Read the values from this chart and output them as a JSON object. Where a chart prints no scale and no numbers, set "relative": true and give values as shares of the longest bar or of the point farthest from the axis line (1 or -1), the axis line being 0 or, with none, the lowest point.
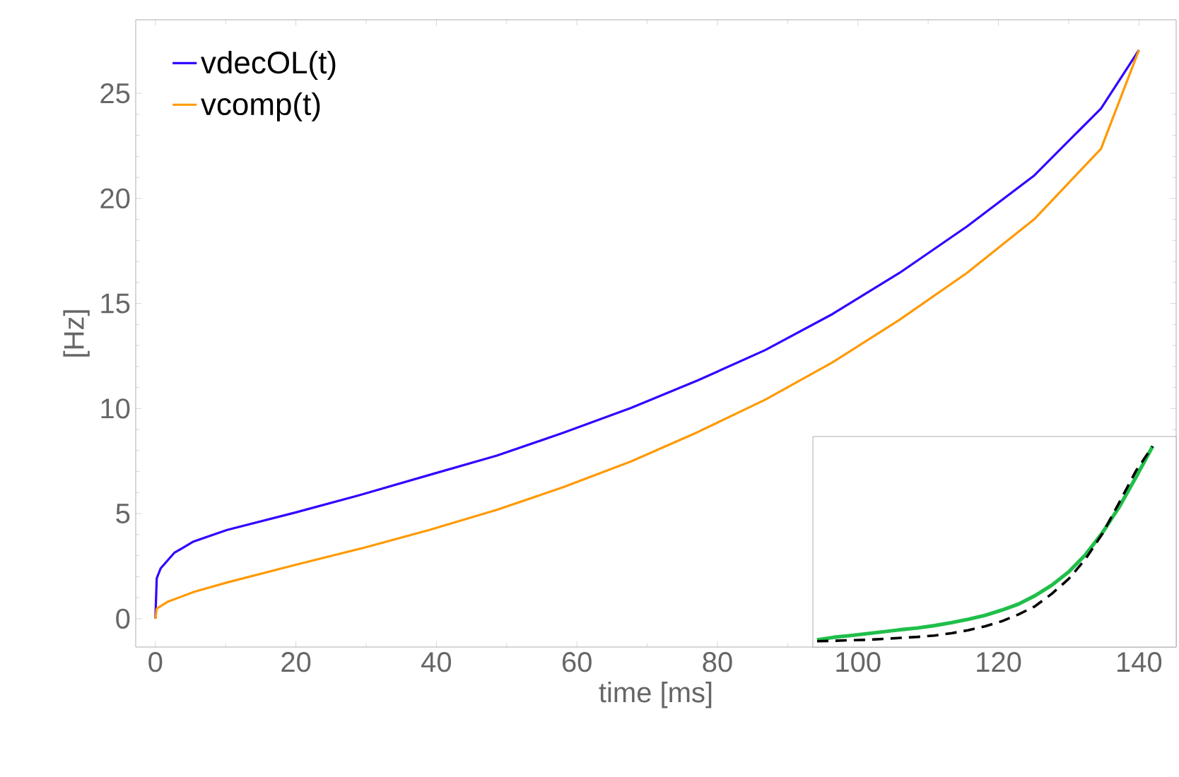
{
  "chart_data": [
    {
      "type": "line",
      "xlabel": "time [ms]",
      "ylabel": "[Hz]",
      "xlim": [
        -2.8,
        145.3
      ],
      "ylim": [
        -1.35,
        28.5
      ],
      "xticks": [
        0,
        20,
        40,
        60,
        80,
        100,
        120,
        140
      ],
      "yticks": [
        0,
        5,
        10,
        15,
        20,
        25
      ],
      "legend": "top left",
      "grid": false,
      "series": [
        {
          "name": "vdecOL(t)",
          "color": "#3300ff",
          "x": [
            0,
            0.19,
            0.76,
            2.68,
            5.42,
            10.2,
            19.9,
            29.4,
            39.0,
            48.6,
            58.1,
            67.7,
            77.2,
            86.8,
            96.4,
            105.9,
            115.5,
            125.1,
            134.6,
            140
          ],
          "values": [
            0,
            1.92,
            2.4,
            3.13,
            3.67,
            4.22,
            5.05,
            5.91,
            6.84,
            7.76,
            8.85,
            10.03,
            11.34,
            12.78,
            14.5,
            16.45,
            18.66,
            21.09,
            24.28,
            27.06
          ]
        },
        {
          "name": "vcomp(t)",
          "color": "#ff9900",
          "x": [
            0,
            0.19,
            1.72,
            5.54,
            10.3,
            19.9,
            29.4,
            39.0,
            48.6,
            58.1,
            67.7,
            77.2,
            86.8,
            96.4,
            105.9,
            115.5,
            125.1,
            134.6,
            140
          ],
          "values": [
            0,
            0.48,
            0.8,
            1.28,
            1.73,
            2.56,
            3.35,
            4.22,
            5.18,
            6.26,
            7.48,
            8.88,
            10.42,
            12.2,
            14.22,
            16.45,
            19.01,
            22.36,
            27.06
          ]
        }
      ]
    },
    {
      "type": "line",
      "relative": true,
      "categories": [
        null,
        null,
        null,
        null,
        null,
        null,
        null,
        null,
        null,
        null,
        null,
        null,
        null,
        null,
        null,
        null,
        null,
        null,
        null,
        null,
        null
      ],
      "series": [
        {
          "color": "#1fbf4a",
          "line_style": "solid",
          "values": [
            0.007,
            0.02,
            0.029,
            0.039,
            0.049,
            0.059,
            0.068,
            0.08,
            0.095,
            0.112,
            0.132,
            0.159,
            0.19,
            0.234,
            0.288,
            0.356,
            0.444,
            0.556,
            0.688,
            0.841,
            1
          ]
        },
        {
          "color": "#000000",
          "line_style": "dashed",
          "values": [
            0,
            0.002,
            0.005,
            0.007,
            0.012,
            0.017,
            0.022,
            0.029,
            0.041,
            0.056,
            0.076,
            0.102,
            0.137,
            0.18,
            0.244,
            0.32,
            0.422,
            0.551,
            0.71,
            0.873,
            1
          ]
        }
      ]
    }
  ]
}
